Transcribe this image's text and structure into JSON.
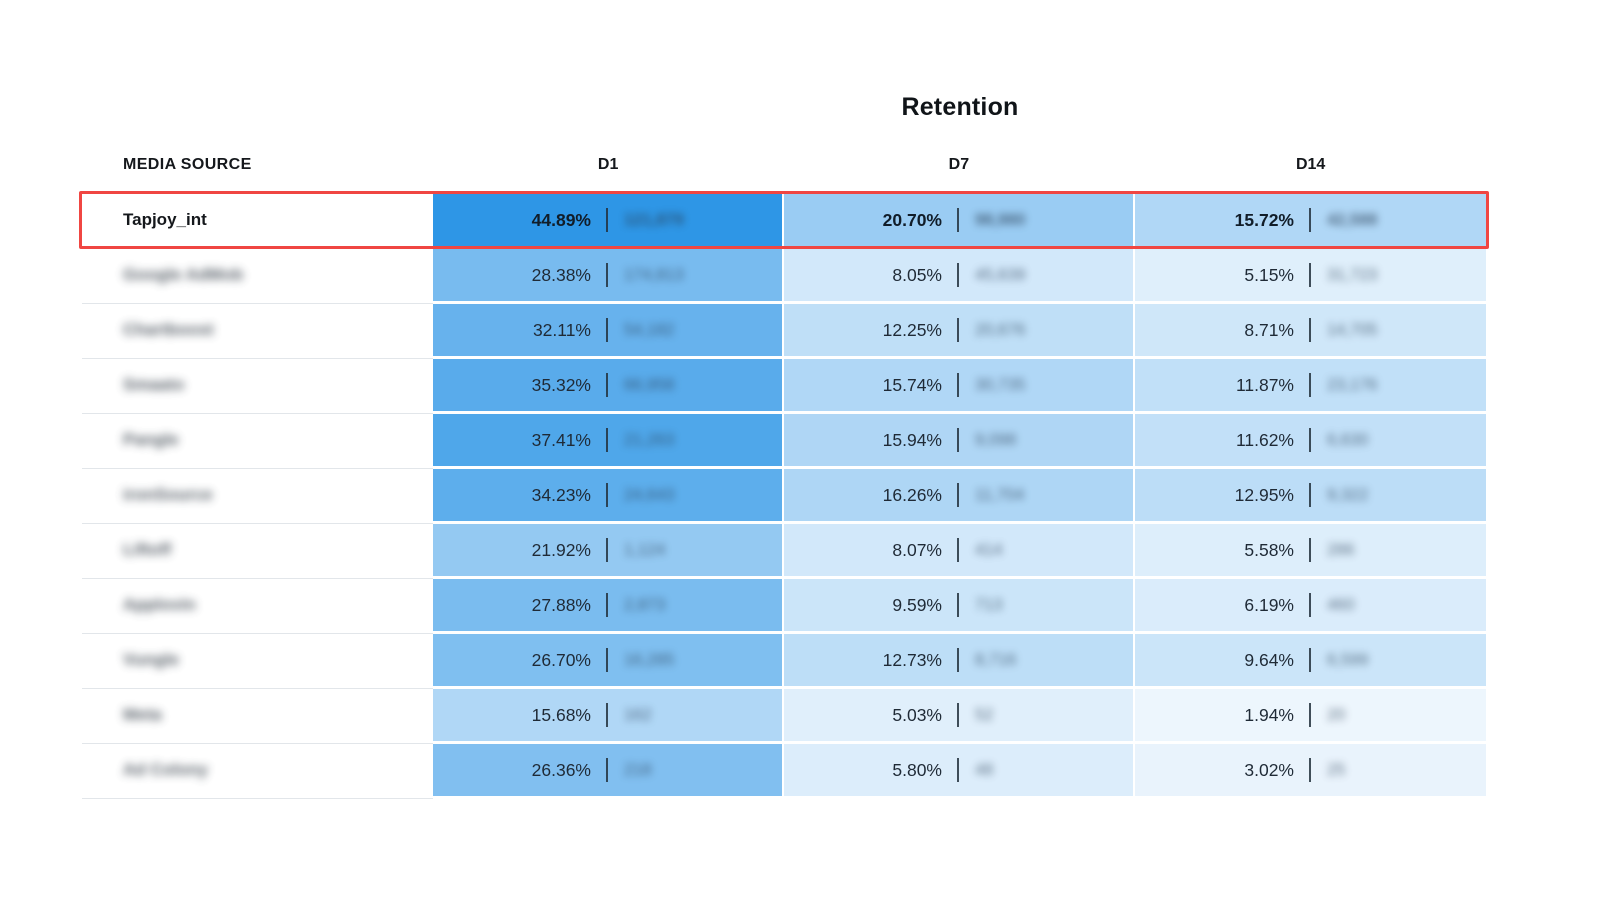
{
  "title": "Retention",
  "columns": {
    "media_source": "MEDIA SOURCE",
    "d1": "D1",
    "d7": "D7",
    "d14": "D14"
  },
  "annotation": {
    "highlight_color": "#F04642",
    "highlighted_row": "Tapjoy_int"
  },
  "heatmap": {
    "low_color": "#F6FAFE",
    "high_color": "#2E96E6",
    "scale_max": 44.89
  },
  "counts_blurred": true,
  "rows": [
    {
      "media_source": "Tapjoy_int",
      "media_blurred": false,
      "highlighted": true,
      "cells": [
        {
          "pct": "44.89%",
          "count": "121,879"
        },
        {
          "pct": "20.70%",
          "count": "98,980"
        },
        {
          "pct": "15.72%",
          "count": "42,588"
        }
      ]
    },
    {
      "media_source": "Google AdMob",
      "media_blurred": true,
      "highlighted": false,
      "cells": [
        {
          "pct": "28.38%",
          "count": "174,813"
        },
        {
          "pct": "8.05%",
          "count": "45,639"
        },
        {
          "pct": "5.15%",
          "count": "31,723"
        }
      ]
    },
    {
      "media_source": "Chartboost",
      "media_blurred": true,
      "highlighted": false,
      "cells": [
        {
          "pct": "32.11%",
          "count": "54,182"
        },
        {
          "pct": "12.25%",
          "count": "20,676"
        },
        {
          "pct": "8.71%",
          "count": "14,705"
        }
      ]
    },
    {
      "media_source": "Smaato",
      "media_blurred": true,
      "highlighted": false,
      "cells": [
        {
          "pct": "35.32%",
          "count": "66,958"
        },
        {
          "pct": "15.74%",
          "count": "30,735"
        },
        {
          "pct": "11.87%",
          "count": "23,176"
        }
      ]
    },
    {
      "media_source": "Pangle",
      "media_blurred": true,
      "highlighted": false,
      "cells": [
        {
          "pct": "37.41%",
          "count": "21,263"
        },
        {
          "pct": "15.94%",
          "count": "9,098"
        },
        {
          "pct": "11.62%",
          "count": "6,630"
        }
      ]
    },
    {
      "media_source": "ironSource",
      "media_blurred": true,
      "highlighted": false,
      "cells": [
        {
          "pct": "34.23%",
          "count": "24,643"
        },
        {
          "pct": "16.26%",
          "count": "11,704"
        },
        {
          "pct": "12.95%",
          "count": "9,322"
        }
      ]
    },
    {
      "media_source": "Liftoff",
      "media_blurred": true,
      "highlighted": false,
      "cells": [
        {
          "pct": "21.92%",
          "count": "1,124"
        },
        {
          "pct": "8.07%",
          "count": "414"
        },
        {
          "pct": "5.58%",
          "count": "286"
        }
      ]
    },
    {
      "media_source": "Applovin",
      "media_blurred": true,
      "highlighted": false,
      "cells": [
        {
          "pct": "27.88%",
          "count": "2,873"
        },
        {
          "pct": "9.59%",
          "count": "713"
        },
        {
          "pct": "6.19%",
          "count": "460"
        }
      ]
    },
    {
      "media_source": "Vungle",
      "media_blurred": true,
      "highlighted": false,
      "cells": [
        {
          "pct": "26.70%",
          "count": "16,285"
        },
        {
          "pct": "12.73%",
          "count": "8,716"
        },
        {
          "pct": "9.64%",
          "count": "6,599"
        }
      ]
    },
    {
      "media_source": "Meta",
      "media_blurred": true,
      "highlighted": false,
      "cells": [
        {
          "pct": "15.68%",
          "count": "162"
        },
        {
          "pct": "5.03%",
          "count": "52"
        },
        {
          "pct": "1.94%",
          "count": "20"
        }
      ]
    },
    {
      "media_source": "Ad Colony",
      "media_blurred": true,
      "highlighted": false,
      "cells": [
        {
          "pct": "26.36%",
          "count": "218"
        },
        {
          "pct": "5.80%",
          "count": "48"
        },
        {
          "pct": "3.02%",
          "count": "25"
        }
      ]
    }
  ],
  "chart_data": {
    "type": "heatmap",
    "title": "Retention",
    "row_header": "MEDIA SOURCE",
    "columns": [
      "D1",
      "D7",
      "D14"
    ],
    "rows": [
      "Tapjoy_int",
      "Google AdMob",
      "Chartboost",
      "Smaato",
      "Pangle",
      "ironSource",
      "Liftoff",
      "Applovin",
      "Vungle",
      "Meta",
      "Ad Colony"
    ],
    "values_pct": [
      [
        44.89,
        20.7,
        15.72
      ],
      [
        28.38,
        8.05,
        5.15
      ],
      [
        32.11,
        12.25,
        8.71
      ],
      [
        35.32,
        15.74,
        11.87
      ],
      [
        37.41,
        15.94,
        11.62
      ],
      [
        34.23,
        16.26,
        12.95
      ],
      [
        21.92,
        8.07,
        5.58
      ],
      [
        27.88,
        9.59,
        6.19
      ],
      [
        26.7,
        12.73,
        9.64
      ],
      [
        15.68,
        5.03,
        1.94
      ],
      [
        26.36,
        5.8,
        3.02
      ]
    ],
    "highlighted_row": "Tapjoy_int",
    "color_scale": {
      "min_color": "#F6FAFE",
      "max_color": "#2E96E6",
      "max_value": 44.89
    }
  }
}
